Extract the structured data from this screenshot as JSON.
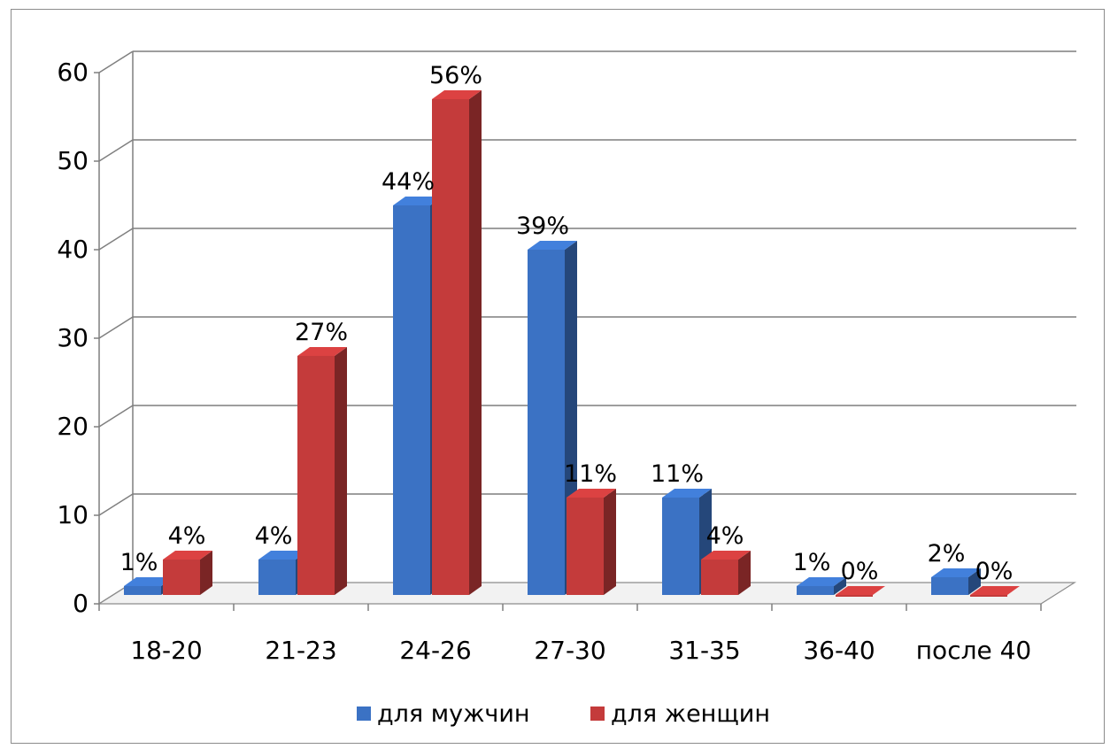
{
  "chart_data": {
    "type": "bar",
    "title": "",
    "xlabel": "",
    "ylabel": "",
    "categories": [
      "18-20",
      "21-23",
      "24-26",
      "27-30",
      "31-35",
      "36-40",
      "после 40"
    ],
    "ylim": [
      0,
      60
    ],
    "yticks": [
      0,
      10,
      20,
      30,
      40,
      50,
      60
    ],
    "grid": true,
    "legend_position": "bottom",
    "three_d": true,
    "series": [
      {
        "name": "для мужчин",
        "color": "#3b72c4",
        "values": [
          1,
          4,
          44,
          39,
          11,
          1,
          2
        ],
        "labels": [
          "1%",
          "4%",
          "44%",
          "39%",
          "11%",
          "1%",
          "2%"
        ]
      },
      {
        "name": "для женщин",
        "color": "#c43b3b",
        "values": [
          4,
          27,
          56,
          11,
          4,
          0,
          0
        ],
        "labels": [
          "4%",
          "27%",
          "56%",
          "11%",
          "4%",
          "0%",
          "0%"
        ]
      }
    ]
  }
}
